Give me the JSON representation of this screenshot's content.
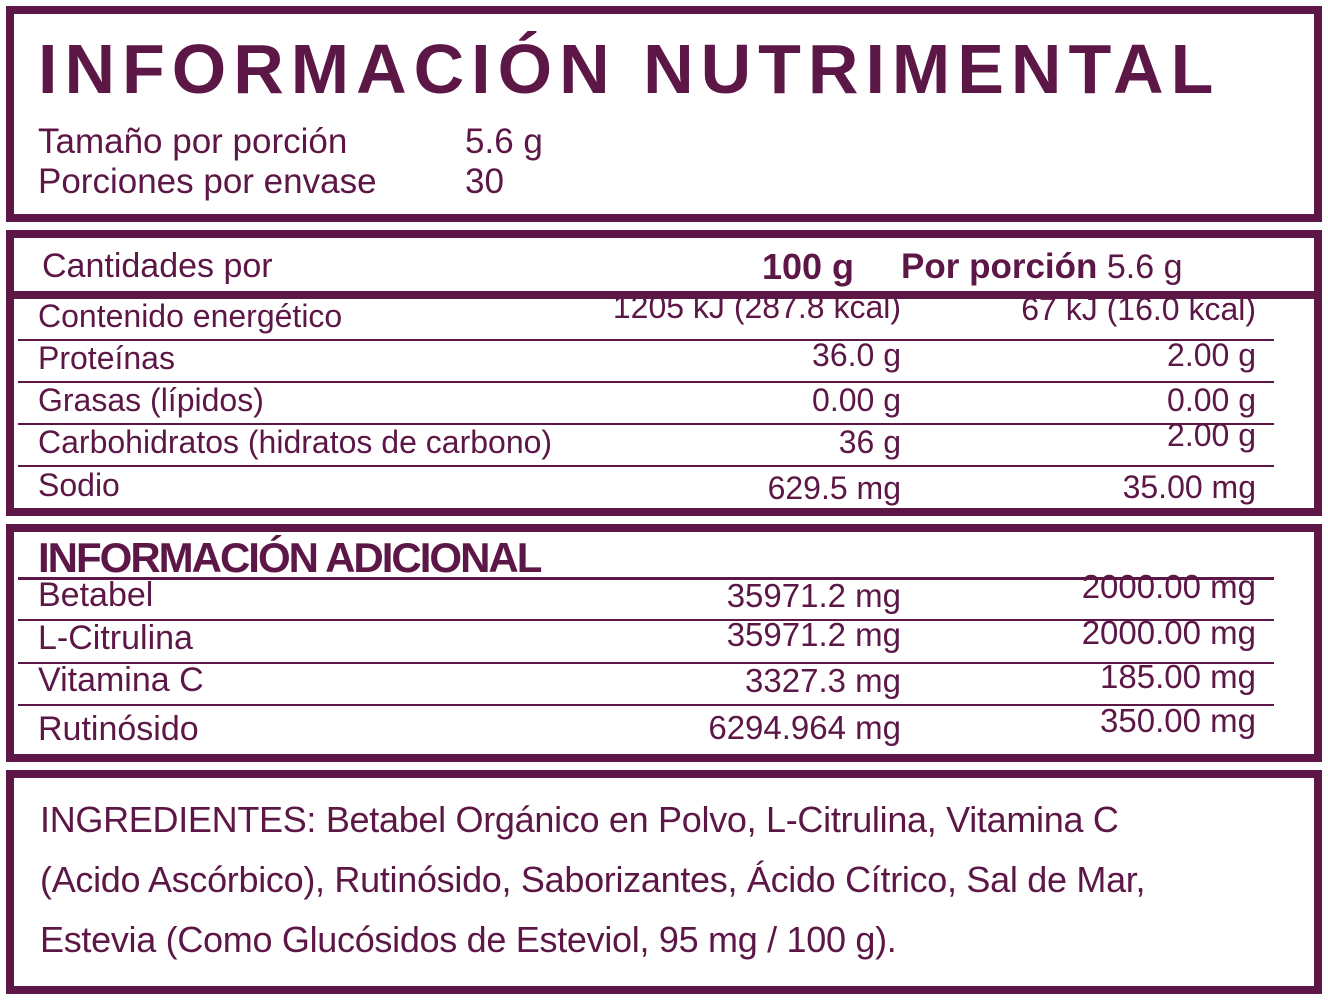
{
  "colors": {
    "accent": "#5c1746",
    "background": "#ffffff"
  },
  "header": {
    "title": "INFORMACIÓN NUTRIMENTAL",
    "serving_size_label": "Tamaño por porción",
    "serving_size_value": "5.6 g",
    "servings_label": "Porciones por envase",
    "servings_value": "30"
  },
  "main_table": {
    "header": {
      "label": "Cantidades por",
      "col1": "100 g",
      "col2_bold": "Por porción",
      "col2_value": "5.6 g"
    },
    "rows": [
      {
        "label": "Contenido energético",
        "per100": "1205 kJ (287.8 kcal)",
        "per_portion": "67 kJ (16.0 kcal)"
      },
      {
        "label": "Proteínas",
        "per100": "36.0 g",
        "per_portion": "2.00 g"
      },
      {
        "label": "Grasas (lípidos)",
        "per100": "0.00 g",
        "per_portion": "0.00 g"
      },
      {
        "label": "Carbohidratos (hidratos de carbono)",
        "per100": "36 g",
        "per_portion": "2.00 g"
      },
      {
        "label": "Sodio",
        "per100": "629.5 mg",
        "per_portion": "35.00 mg"
      }
    ]
  },
  "additional_table": {
    "title": "INFORMACIÓN ADICIONAL",
    "rows": [
      {
        "label": "Betabel",
        "per100": "35971.2 mg",
        "per_portion": "2000.00 mg"
      },
      {
        "label": "L-Citrulina",
        "per100": "35971.2 mg",
        "per_portion": "2000.00 mg"
      },
      {
        "label": "Vitamina C",
        "per100": "3327.3 mg",
        "per_portion": "185.00 mg"
      },
      {
        "label": "Rutinósido",
        "per100": "6294.964 mg",
        "per_portion": "350.00 mg"
      }
    ]
  },
  "ingredients": {
    "lines": [
      "INGREDIENTES: Betabel Orgánico en Polvo, L-Citrulina, Vitamina C",
      "(Acido Ascórbico), Rutinósido, Saborizantes, Ácido Cítrico, Sal de Mar,",
      "Estevia (Como Glucósidos de Esteviol, 95 mg / 100 g)."
    ]
  }
}
